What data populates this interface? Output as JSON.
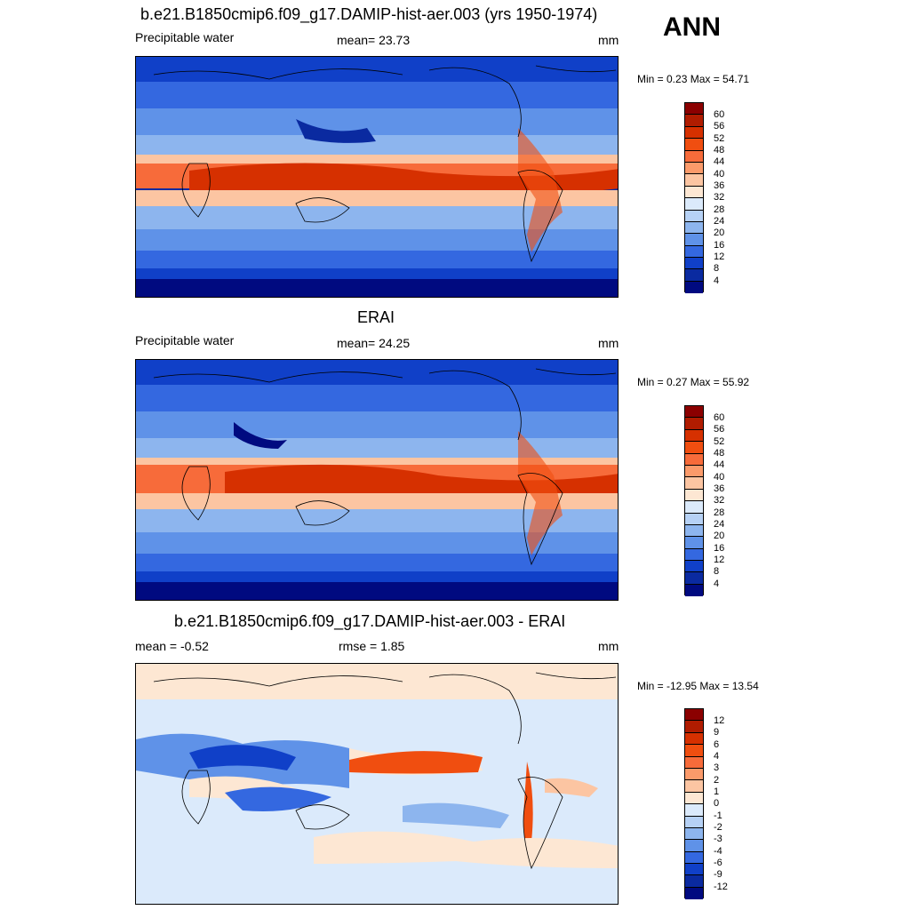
{
  "season": "ANN",
  "panels": [
    {
      "title": "b.e21.B1850cmip6.f09_g17.DAMIP-hist-aer.003 (yrs 1950-1974)",
      "left": "Precipitable water",
      "center": "mean=  23.73",
      "right": "mm",
      "minmax": "Min =   0.23 Max =  54.71",
      "levels": [
        "60",
        "56",
        "52",
        "48",
        "44",
        "40",
        "36",
        "32",
        "28",
        "24",
        "20",
        "16",
        "12",
        "8",
        "4"
      ]
    },
    {
      "title": "ERAI",
      "left": "Precipitable water",
      "center": "mean=  24.25",
      "right": "mm",
      "minmax": "Min =   0.27 Max =  55.92",
      "levels": [
        "60",
        "56",
        "52",
        "48",
        "44",
        "40",
        "36",
        "32",
        "28",
        "24",
        "20",
        "16",
        "12",
        "8",
        "4"
      ]
    },
    {
      "title": "b.e21.B1850cmip6.f09_g17.DAMIP-hist-aer.003 - ERAI",
      "left": "mean =  -0.52",
      "center": "rmse =   1.85",
      "right": "mm",
      "minmax": "Min = -12.95 Max =  13.54",
      "levels": [
        "12",
        "9",
        "6",
        "4",
        "3",
        "2",
        "1",
        "0",
        "-1",
        "-2",
        "-3",
        "-4",
        "-6",
        "-9",
        "-12"
      ]
    }
  ],
  "colors": {
    "abs_scale": [
      "#8b0000",
      "#b01c00",
      "#d63000",
      "#f04e10",
      "#f76b3a",
      "#fb9a6a",
      "#fcc5a2",
      "#fde7d3",
      "#dbeafb",
      "#b6d1f5",
      "#8db5ee",
      "#5f92e8",
      "#3468e0",
      "#1040c8",
      "#0a2aa0",
      "#000a80"
    ],
    "diff_scale": [
      "#8b0000",
      "#b01c00",
      "#d63000",
      "#f04e10",
      "#f76b3a",
      "#fb9a6a",
      "#fcc5a2",
      "#fde7d3",
      "#dbeafb",
      "#b6d1f5",
      "#8db5ee",
      "#5f92e8",
      "#3468e0",
      "#1040c8",
      "#0a2aa0",
      "#000a80"
    ]
  }
}
